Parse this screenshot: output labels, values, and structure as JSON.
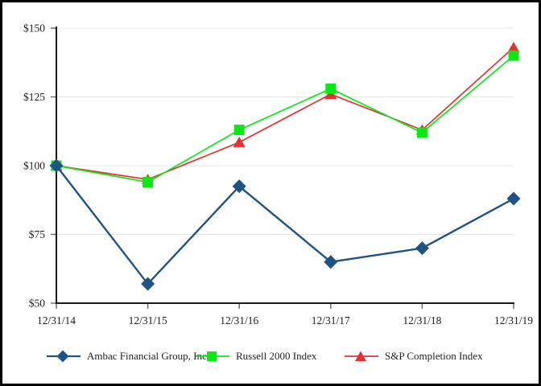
{
  "page": {
    "background": "#ffffff",
    "border_color": "#000000"
  },
  "chart_data": {
    "type": "line",
    "title": "",
    "x_labels": [
      "12/31/14",
      "12/31/15",
      "12/31/16",
      "12/31/17",
      "12/31/18",
      "12/31/19"
    ],
    "y_tick_labels": [
      "$150",
      "$125",
      "$100",
      "$75",
      "$50"
    ],
    "y_tick_values": [
      150,
      125,
      100,
      75,
      50
    ],
    "ylim": [
      50,
      150
    ],
    "grid": true,
    "legend_position": "bottom",
    "axis_color": "#1a1a1a",
    "grid_color": "#e4e4e4",
    "tick_color": "#6e6e6e",
    "series": [
      {
        "name": "Ambac Financial Group, Inc.",
        "marker": "diamond",
        "color": "#1F5382",
        "values": [
          100,
          57,
          92.5,
          65,
          70,
          88
        ]
      },
      {
        "name": "Russell 2000 Index",
        "marker": "square",
        "color": "#0CE718",
        "values": [
          100,
          94,
          113,
          128,
          112,
          140
        ]
      },
      {
        "name": "S&P Completion Index",
        "marker": "triangle",
        "color": "#E33232",
        "values": [
          100,
          95,
          108.5,
          126,
          113,
          143
        ]
      }
    ]
  }
}
